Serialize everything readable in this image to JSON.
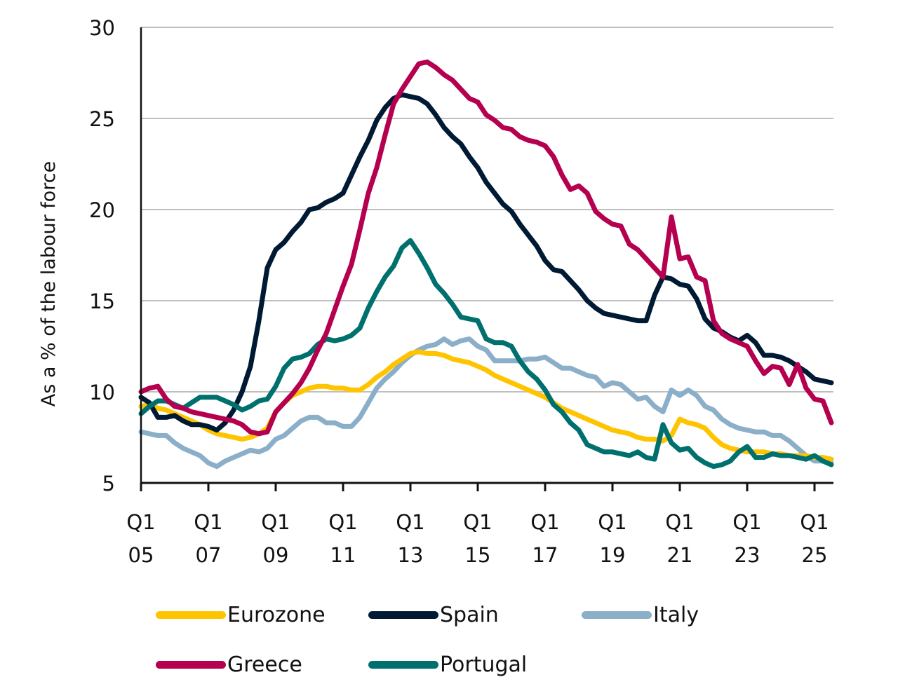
{
  "chart_data": {
    "type": "line",
    "title": "",
    "xlabel": "",
    "ylabel": "As a % of the labour force",
    "ylim": [
      5,
      30
    ],
    "yticks": [
      5,
      10,
      15,
      20,
      25,
      30
    ],
    "grid": true,
    "legend_position": "bottom",
    "x_start": "2005Q1",
    "x_end": "2025Q3",
    "x_frequency": "quarterly",
    "xtick_labels": [
      {
        "line1": "Q1",
        "line2": "05",
        "index": 0
      },
      {
        "line1": "Q1",
        "line2": "07",
        "index": 8
      },
      {
        "line1": "Q1",
        "line2": "09",
        "index": 16
      },
      {
        "line1": "Q1",
        "line2": "11",
        "index": 24
      },
      {
        "line1": "Q1",
        "line2": "13",
        "index": 32
      },
      {
        "line1": "Q1",
        "line2": "15",
        "index": 40
      },
      {
        "line1": "Q1",
        "line2": "17",
        "index": 48
      },
      {
        "line1": "Q1",
        "line2": "19",
        "index": 56
      },
      {
        "line1": "Q1",
        "line2": "21",
        "index": 64
      },
      {
        "line1": "Q1",
        "line2": "23",
        "index": 72
      },
      {
        "line1": "Q1",
        "line2": "25",
        "index": 80
      }
    ],
    "series": [
      {
        "name": "Eurozone",
        "color": "#FFC400",
        "values": [
          9.2,
          9.3,
          9.1,
          9.0,
          8.8,
          8.6,
          8.4,
          8.2,
          7.9,
          7.7,
          7.6,
          7.5,
          7.4,
          7.5,
          7.7,
          8.0,
          8.9,
          9.4,
          9.8,
          10.0,
          10.2,
          10.3,
          10.3,
          10.2,
          10.2,
          10.1,
          10.1,
          10.4,
          10.8,
          11.1,
          11.5,
          11.8,
          12.1,
          12.2,
          12.1,
          12.1,
          12.0,
          11.8,
          11.7,
          11.6,
          11.4,
          11.2,
          10.9,
          10.7,
          10.5,
          10.3,
          10.1,
          9.9,
          9.7,
          9.4,
          9.1,
          8.9,
          8.7,
          8.5,
          8.3,
          8.1,
          7.9,
          7.8,
          7.7,
          7.5,
          7.4,
          7.4,
          7.3,
          7.6,
          8.5,
          8.3,
          8.2,
          8.0,
          7.5,
          7.1,
          6.9,
          6.8,
          6.7,
          6.7,
          6.7,
          6.6,
          6.6,
          6.5,
          6.5,
          6.5,
          6.4,
          6.4,
          6.3
        ]
      },
      {
        "name": "Spain",
        "color": "#001A33",
        "values": [
          9.7,
          9.4,
          8.6,
          8.6,
          8.7,
          8.4,
          8.2,
          8.2,
          8.1,
          7.9,
          8.3,
          9.0,
          10.0,
          11.4,
          13.9,
          16.8,
          17.8,
          18.2,
          18.8,
          19.3,
          20.0,
          20.1,
          20.4,
          20.6,
          20.9,
          21.9,
          22.9,
          23.8,
          24.9,
          25.6,
          26.1,
          26.3,
          26.2,
          26.1,
          25.8,
          25.2,
          24.5,
          24.0,
          23.6,
          22.9,
          22.3,
          21.5,
          20.9,
          20.3,
          19.9,
          19.2,
          18.6,
          18.0,
          17.2,
          16.7,
          16.6,
          16.1,
          15.6,
          15.0,
          14.6,
          14.3,
          14.2,
          14.1,
          14.0,
          13.9,
          13.9,
          15.3,
          16.3,
          16.2,
          15.9,
          15.8,
          15.1,
          14.0,
          13.5,
          13.3,
          13.0,
          12.8,
          13.1,
          12.7,
          12.0,
          12.0,
          11.9,
          11.7,
          11.4,
          11.1,
          10.7,
          10.6,
          10.5
        ]
      },
      {
        "name": "Italy",
        "color": "#8BAEC9",
        "values": [
          7.8,
          7.7,
          7.6,
          7.6,
          7.2,
          6.9,
          6.7,
          6.5,
          6.1,
          5.9,
          6.2,
          6.4,
          6.6,
          6.8,
          6.7,
          6.9,
          7.4,
          7.6,
          8.0,
          8.4,
          8.6,
          8.6,
          8.3,
          8.3,
          8.1,
          8.1,
          8.6,
          9.4,
          10.2,
          10.7,
          11.1,
          11.6,
          12.0,
          12.3,
          12.5,
          12.6,
          12.9,
          12.6,
          12.8,
          12.9,
          12.5,
          12.3,
          11.7,
          11.7,
          11.7,
          11.7,
          11.8,
          11.8,
          11.9,
          11.6,
          11.3,
          11.3,
          11.1,
          10.9,
          10.8,
          10.3,
          10.5,
          10.4,
          10.0,
          9.6,
          9.7,
          9.2,
          8.9,
          10.1,
          9.8,
          10.1,
          9.8,
          9.2,
          9.0,
          8.5,
          8.2,
          8.0,
          7.9,
          7.8,
          7.8,
          7.6,
          7.6,
          7.3,
          6.9,
          6.5,
          6.2,
          6.2,
          6.1
        ]
      },
      {
        "name": "Greece",
        "color": "#B5004F",
        "values": [
          10.0,
          10.2,
          10.3,
          9.6,
          9.2,
          9.1,
          8.9,
          8.8,
          8.7,
          8.6,
          8.5,
          8.4,
          8.2,
          7.8,
          7.7,
          7.8,
          8.9,
          9.4,
          9.9,
          10.5,
          11.3,
          12.3,
          13.2,
          14.5,
          15.8,
          17.0,
          18.9,
          20.9,
          22.3,
          24.1,
          25.8,
          26.6,
          27.3,
          28.0,
          28.1,
          27.8,
          27.4,
          27.1,
          26.6,
          26.1,
          25.9,
          25.2,
          24.9,
          24.5,
          24.4,
          24.0,
          23.8,
          23.7,
          23.5,
          22.9,
          21.9,
          21.1,
          21.3,
          20.9,
          19.9,
          19.5,
          19.2,
          19.1,
          18.1,
          17.8,
          17.3,
          16.8,
          16.3,
          19.6,
          17.3,
          17.4,
          16.3,
          16.1,
          13.9,
          13.2,
          12.9,
          12.7,
          12.5,
          11.7,
          11.0,
          11.4,
          11.3,
          10.4,
          11.5,
          10.2,
          9.6,
          9.5,
          8.3
        ]
      },
      {
        "name": "Portugal",
        "color": "#00706F",
        "values": [
          8.8,
          9.2,
          9.5,
          9.5,
          9.3,
          9.1,
          9.4,
          9.7,
          9.7,
          9.7,
          9.5,
          9.3,
          9.0,
          9.2,
          9.5,
          9.6,
          10.3,
          11.3,
          11.8,
          11.9,
          12.1,
          12.6,
          12.9,
          12.8,
          12.9,
          13.1,
          13.5,
          14.6,
          15.5,
          16.3,
          16.9,
          17.9,
          18.3,
          17.6,
          16.8,
          15.9,
          15.4,
          14.8,
          14.1,
          14.0,
          13.9,
          12.9,
          12.7,
          12.7,
          12.5,
          11.7,
          11.1,
          10.7,
          10.1,
          9.3,
          8.9,
          8.3,
          7.9,
          7.1,
          6.9,
          6.7,
          6.7,
          6.6,
          6.5,
          6.7,
          6.4,
          6.3,
          8.2,
          7.2,
          6.8,
          6.9,
          6.4,
          6.1,
          5.9,
          6.0,
          6.2,
          6.7,
          7.0,
          6.4,
          6.4,
          6.6,
          6.5,
          6.5,
          6.4,
          6.3,
          6.5,
          6.2,
          6.0
        ]
      }
    ]
  },
  "legend": {
    "items": [
      {
        "label": "Eurozone",
        "color": "#FFC400"
      },
      {
        "label": "Spain",
        "color": "#001A33"
      },
      {
        "label": "Italy",
        "color": "#8BAEC9"
      },
      {
        "label": "Greece",
        "color": "#B5004F"
      },
      {
        "label": "Portugal",
        "color": "#00706F"
      }
    ]
  }
}
